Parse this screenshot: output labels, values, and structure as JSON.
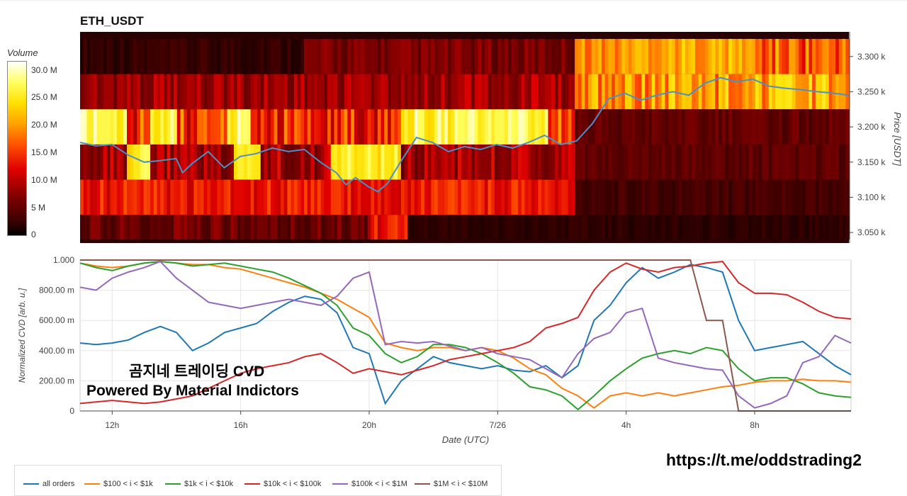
{
  "title": "ETH_USDT",
  "watermark": {
    "line1": "곰지네 트레이딩 CVD",
    "line2": "Powered By Material Indictors",
    "url": "https://t.me/oddstrading2"
  },
  "colorbar": {
    "title": "Volume",
    "ticks": [
      "30.0 M",
      "25.0 M",
      "20.0 M",
      "15.0 M",
      "10.0 M",
      "5 M",
      "0"
    ]
  },
  "chart_data": [
    {
      "type": "heatmap",
      "title": "ETH_USDT",
      "ylabel": "Price [USDT]",
      "y_ticks": [
        "3.300 k",
        "3.250 k",
        "3.200 k",
        "3.150 k",
        "3.100 k",
        "3.050 k"
      ],
      "y_tick_values": [
        3300,
        3250,
        3200,
        3150,
        3100,
        3050
      ],
      "ylim": [
        3035,
        3335
      ],
      "x_range_hours": [
        11,
        35
      ],
      "price_bands": [
        3325,
        3275,
        3225,
        3175,
        3125,
        3075,
        3040
      ],
      "price_line": {
        "color": "#4a90c8",
        "x_hours": [
          11.0,
          11.5,
          12.0,
          12.5,
          13.0,
          13.5,
          14.0,
          14.2,
          14.5,
          15.0,
          15.5,
          16.0,
          16.5,
          17.0,
          17.5,
          18.0,
          18.5,
          19.0,
          19.3,
          19.6,
          20.0,
          20.3,
          20.6,
          21.0,
          21.5,
          22.0,
          22.5,
          23.0,
          23.5,
          24.0,
          24.5,
          25.0,
          25.5,
          26.0,
          26.5,
          27.0,
          27.5,
          28.0,
          28.5,
          29.0,
          29.5,
          30.0,
          30.5,
          31.0,
          31.5,
          32.0,
          32.5,
          33.0,
          33.5,
          34.0,
          34.5,
          35.0
        ],
        "prices": [
          3178,
          3173,
          3175,
          3160,
          3150,
          3152,
          3155,
          3135,
          3148,
          3165,
          3142,
          3158,
          3162,
          3170,
          3165,
          3168,
          3150,
          3135,
          3118,
          3128,
          3115,
          3108,
          3120,
          3150,
          3185,
          3178,
          3165,
          3172,
          3168,
          3175,
          3170,
          3178,
          3188,
          3175,
          3180,
          3205,
          3240,
          3248,
          3238,
          3245,
          3250,
          3245,
          3262,
          3270,
          3264,
          3268,
          3258,
          3255,
          3253,
          3250,
          3248,
          3245
        ]
      },
      "volume_scale_max_m": 33
    },
    {
      "type": "line",
      "xlabel": "Date (UTC)",
      "ylabel": "Normalized CVD [arb. u.]",
      "x_ticks": [
        "12h",
        "16h",
        "20h",
        "7/26",
        "4h",
        "8h"
      ],
      "x_tick_hours": [
        12,
        16,
        20,
        24,
        28,
        32
      ],
      "xlim": [
        11,
        35
      ],
      "y_ticks": [
        "1.000",
        "800.00 m",
        "600.00 m",
        "400.00 m",
        "200.00 m",
        "0"
      ],
      "y_tick_values": [
        1,
        0.8,
        0.6,
        0.4,
        0.2,
        0
      ],
      "ylim": [
        0,
        1
      ],
      "x_hours": [
        11.0,
        11.5,
        12.0,
        12.5,
        13.0,
        13.5,
        14.0,
        14.5,
        15.0,
        15.5,
        16.0,
        16.5,
        17.0,
        17.5,
        18.0,
        18.5,
        19.0,
        19.5,
        20.0,
        20.5,
        21.0,
        21.5,
        22.0,
        22.5,
        23.0,
        23.5,
        24.0,
        24.5,
        25.0,
        25.5,
        26.0,
        26.5,
        27.0,
        27.5,
        28.0,
        28.5,
        29.0,
        29.5,
        30.0,
        30.5,
        31.0,
        31.5,
        32.0,
        32.5,
        33.0,
        33.5,
        34.0,
        34.5,
        35.0
      ],
      "series": [
        {
          "name": "all orders",
          "color": "#1f77b4",
          "values": [
            0.45,
            0.44,
            0.45,
            0.47,
            0.52,
            0.56,
            0.52,
            0.4,
            0.45,
            0.52,
            0.55,
            0.58,
            0.66,
            0.72,
            0.76,
            0.74,
            0.65,
            0.42,
            0.38,
            0.05,
            0.2,
            0.28,
            0.36,
            0.32,
            0.3,
            0.28,
            0.3,
            0.27,
            0.26,
            0.3,
            0.22,
            0.3,
            0.6,
            0.7,
            0.85,
            0.95,
            0.88,
            0.92,
            0.97,
            0.95,
            0.92,
            0.6,
            0.4,
            0.42,
            0.44,
            0.46,
            0.38,
            0.3,
            0.24
          ]
        },
        {
          "name": "$100 < i < $1k",
          "color": "#ff7f0e",
          "values": [
            0.98,
            0.96,
            0.95,
            0.96,
            0.98,
            0.99,
            0.98,
            0.97,
            0.97,
            0.95,
            0.94,
            0.91,
            0.88,
            0.85,
            0.82,
            0.78,
            0.74,
            0.68,
            0.62,
            0.45,
            0.42,
            0.4,
            0.42,
            0.42,
            0.4,
            0.42,
            0.4,
            0.35,
            0.28,
            0.24,
            0.15,
            0.1,
            0.02,
            0.1,
            0.12,
            0.1,
            0.12,
            0.1,
            0.12,
            0.14,
            0.16,
            0.17,
            0.19,
            0.2,
            0.2,
            0.21,
            0.2,
            0.2,
            0.19
          ]
        },
        {
          "name": "$1k < i < $10k",
          "color": "#2ca02c",
          "values": [
            0.98,
            0.95,
            0.93,
            0.96,
            0.98,
            0.99,
            0.98,
            0.96,
            0.97,
            0.98,
            0.96,
            0.94,
            0.92,
            0.88,
            0.83,
            0.78,
            0.7,
            0.55,
            0.5,
            0.38,
            0.32,
            0.36,
            0.44,
            0.44,
            0.42,
            0.38,
            0.32,
            0.25,
            0.16,
            0.14,
            0.1,
            0.01,
            0.1,
            0.2,
            0.28,
            0.35,
            0.38,
            0.4,
            0.38,
            0.42,
            0.4,
            0.28,
            0.2,
            0.22,
            0.22,
            0.18,
            0.12,
            0.1,
            0.09
          ]
        },
        {
          "name": "$10k < i < $100k",
          "color": "#d62728",
          "values": [
            0.05,
            0.06,
            0.07,
            0.06,
            0.05,
            0.06,
            0.08,
            0.1,
            0.15,
            0.2,
            0.25,
            0.28,
            0.3,
            0.32,
            0.36,
            0.38,
            0.32,
            0.25,
            0.28,
            0.26,
            0.24,
            0.27,
            0.3,
            0.34,
            0.36,
            0.38,
            0.4,
            0.42,
            0.46,
            0.55,
            0.58,
            0.62,
            0.8,
            0.92,
            0.98,
            0.94,
            0.92,
            0.95,
            0.96,
            0.98,
            0.99,
            0.85,
            0.78,
            0.78,
            0.77,
            0.72,
            0.66,
            0.62,
            0.61
          ]
        },
        {
          "name": "$100k < i < $1M",
          "color": "#9467bd",
          "values": [
            0.82,
            0.8,
            0.88,
            0.92,
            0.95,
            0.99,
            0.88,
            0.8,
            0.72,
            0.7,
            0.68,
            0.7,
            0.72,
            0.74,
            0.72,
            0.7,
            0.76,
            0.88,
            0.92,
            0.44,
            0.46,
            0.45,
            0.46,
            0.43,
            0.4,
            0.42,
            0.38,
            0.36,
            0.34,
            0.28,
            0.22,
            0.38,
            0.48,
            0.52,
            0.65,
            0.68,
            0.35,
            0.32,
            0.3,
            0.28,
            0.27,
            0.1,
            0.02,
            0.05,
            0.1,
            0.32,
            0.36,
            0.5,
            0.45
          ]
        },
        {
          "name": "$1M < i < $10M",
          "color": "#8c564b",
          "values": [
            1.0,
            1.0,
            1.0,
            1.0,
            1.0,
            1.0,
            1.0,
            1.0,
            1.0,
            1.0,
            1.0,
            1.0,
            1.0,
            1.0,
            1.0,
            1.0,
            1.0,
            1.0,
            1.0,
            1.0,
            1.0,
            1.0,
            1.0,
            1.0,
            1.0,
            1.0,
            1.0,
            1.0,
            1.0,
            1.0,
            1.0,
            1.0,
            1.0,
            1.0,
            1.0,
            1.0,
            1.0,
            1.0,
            1.0,
            0.6,
            0.6,
            0.0,
            0.0,
            0.0,
            0.0,
            0.0,
            0.0,
            0.0,
            0.0
          ]
        }
      ]
    }
  ],
  "legend": [
    "all orders",
    "$100 < i < $1k",
    "$1k < i < $10k",
    "$10k < i < $100k",
    "$100k < i < $1M",
    "$1M < i < $10M"
  ]
}
